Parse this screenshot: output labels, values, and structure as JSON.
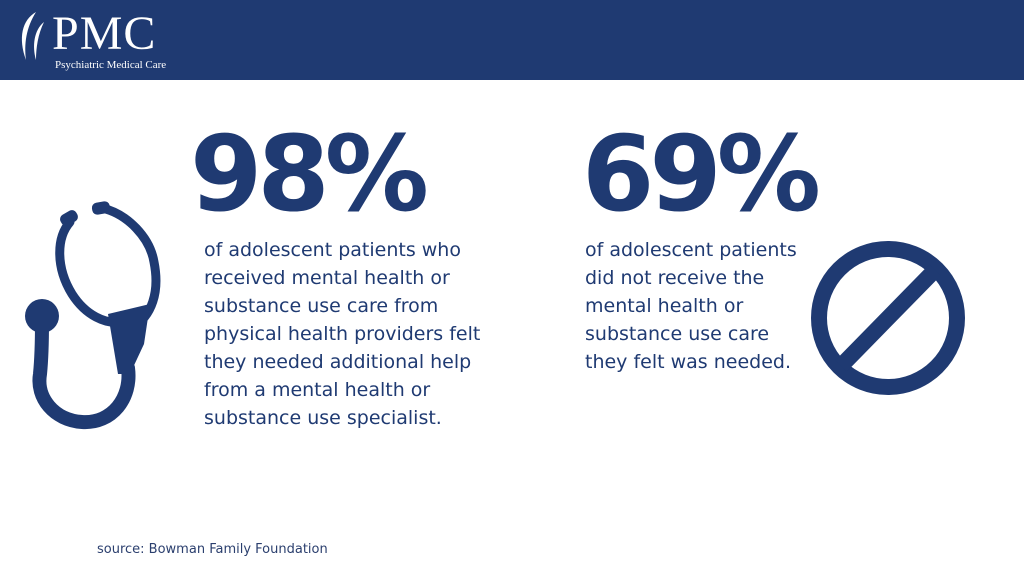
{
  "header": {
    "logo_text": "PMC",
    "logo_subtitle": "Psychiatric Medical Care"
  },
  "stats": [
    {
      "value": "98%",
      "lines": [
        "of adolescent patients who",
        "received mental health or",
        "substance use care from",
        "physical health providers felt",
        "they needed additional help",
        "from a mental health or",
        "substance use specialist."
      ],
      "icon": "stethoscope-icon"
    },
    {
      "value": "69%",
      "lines": [
        "of adolescent patients",
        "did not receive the",
        "mental health or",
        "substance use care",
        "they felt was needed."
      ],
      "icon": "prohibited-icon"
    }
  ],
  "source": "source: Bowman Family Foundation",
  "colors": {
    "brand": "#1f3a72",
    "background": "#ffffff"
  }
}
